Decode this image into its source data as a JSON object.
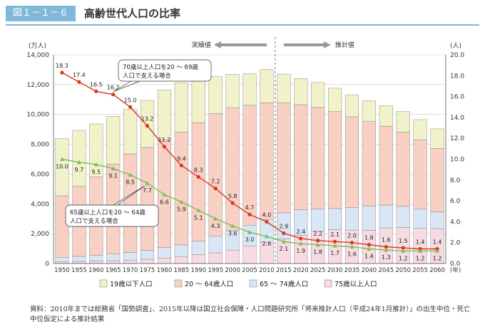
{
  "header": {
    "figure_number": "図１－１－６",
    "title": "高齢世代人口の比率"
  },
  "chart_data": {
    "type": "bar",
    "stacked": true,
    "categories": [
      "1950",
      "1955",
      "1960",
      "1965",
      "1970",
      "1975",
      "1980",
      "1985",
      "1990",
      "1995",
      "2000",
      "2005",
      "2010",
      "2015",
      "2020",
      "2025",
      "2030",
      "2035",
      "2040",
      "2045",
      "2050",
      "2055",
      "2060"
    ],
    "x_unit": "(年)",
    "left_axis": {
      "unit": "(万人)",
      "ylim": [
        0,
        14000
      ],
      "ticks": [
        "0",
        "2,000",
        "4,000",
        "6,000",
        "8,000",
        "10,000",
        "12,000",
        "14,000"
      ]
    },
    "right_axis": {
      "unit": "(人)",
      "ylim": [
        0,
        20
      ],
      "ticks": [
        "0.0",
        "2.0",
        "4.0",
        "6.0",
        "8.0",
        "10.0",
        "12.0",
        "14.0",
        "16.0",
        "18.0",
        "20.0"
      ]
    },
    "series": [
      {
        "name": "75歳以上人口",
        "color": "#f6dbe2",
        "values": [
          106,
          139,
          163,
          189,
          224,
          284,
          366,
          471,
          597,
          717,
          901,
          1160,
          1419,
          1646,
          1879,
          2179,
          2278,
          2245,
          2223,
          2385,
          2417,
          2378,
          2336
        ]
      },
      {
        "name": "65 ～ 74歳人口",
        "color": "#d8e6f5",
        "values": [
          309,
          340,
          377,
          442,
          514,
          603,
          699,
          776,
          892,
          1109,
          1301,
          1407,
          1529,
          1749,
          1733,
          1479,
          1407,
          1497,
          1645,
          1532,
          1424,
          1287,
          1128
        ]
      },
      {
        "name": "20 ～ 64歳人口",
        "color": "#f8d0c4",
        "values": [
          4126,
          4699,
          5272,
          6036,
          6622,
          6899,
          7249,
          7576,
          7951,
          8238,
          8249,
          8048,
          7828,
          7396,
          7046,
          6811,
          6503,
          6107,
          5650,
          5299,
          4970,
          4623,
          4260
        ]
      },
      {
        "name": "19歳以下人口",
        "color": "#f1f2c9",
        "values": [
          3837,
          3755,
          3554,
          3213,
          2970,
          3155,
          3336,
          3297,
          3005,
          2480,
          2241,
          2121,
          2230,
          1920,
          1752,
          1671,
          1573,
          1474,
          1389,
          1384,
          1385,
          1364,
          1312
        ]
      }
    ],
    "lines": [
      {
        "name": "70歳以上人口を20 ～ 69歳人口で支える場合",
        "color": "#d9381e",
        "marker": "circle",
        "values": [
          18.3,
          17.4,
          16.5,
          16.2,
          15.0,
          13.2,
          11.2,
          9.4,
          8.3,
          7.2,
          5.8,
          4.7,
          4.0,
          2.9,
          2.4,
          2.2,
          2.1,
          2.0,
          1.8,
          1.6,
          1.5,
          1.4,
          1.4
        ]
      },
      {
        "name": "65歳以上人口を20 ～ 64歳人口で支える場合",
        "color": "#7abf55",
        "marker": "triangle",
        "values": [
          10.0,
          9.7,
          9.5,
          9.1,
          8.5,
          7.7,
          6.6,
          5.9,
          5.1,
          4.3,
          3.6,
          3.0,
          2.6,
          2.1,
          1.9,
          1.8,
          1.7,
          1.6,
          1.4,
          1.3,
          1.2,
          1.2,
          1.2
        ]
      }
    ],
    "annotations": {
      "actual": "実績値",
      "projection": "推計値",
      "callout_70": "70歳以上人口を20 ～ 69歳\n人口で支える場合",
      "callout_65": "65歳以上人口を20 ～ 64歳\n人口で支える場合"
    },
    "legend_position": "bottom"
  },
  "source_note": "資料：2010年までは総務省「国勢調査」、2015年以降は国立社会保障・人口問題研究所「将来推計人口（平成24年1月推計）」の出生中位・死亡中位仮定による推計結果"
}
